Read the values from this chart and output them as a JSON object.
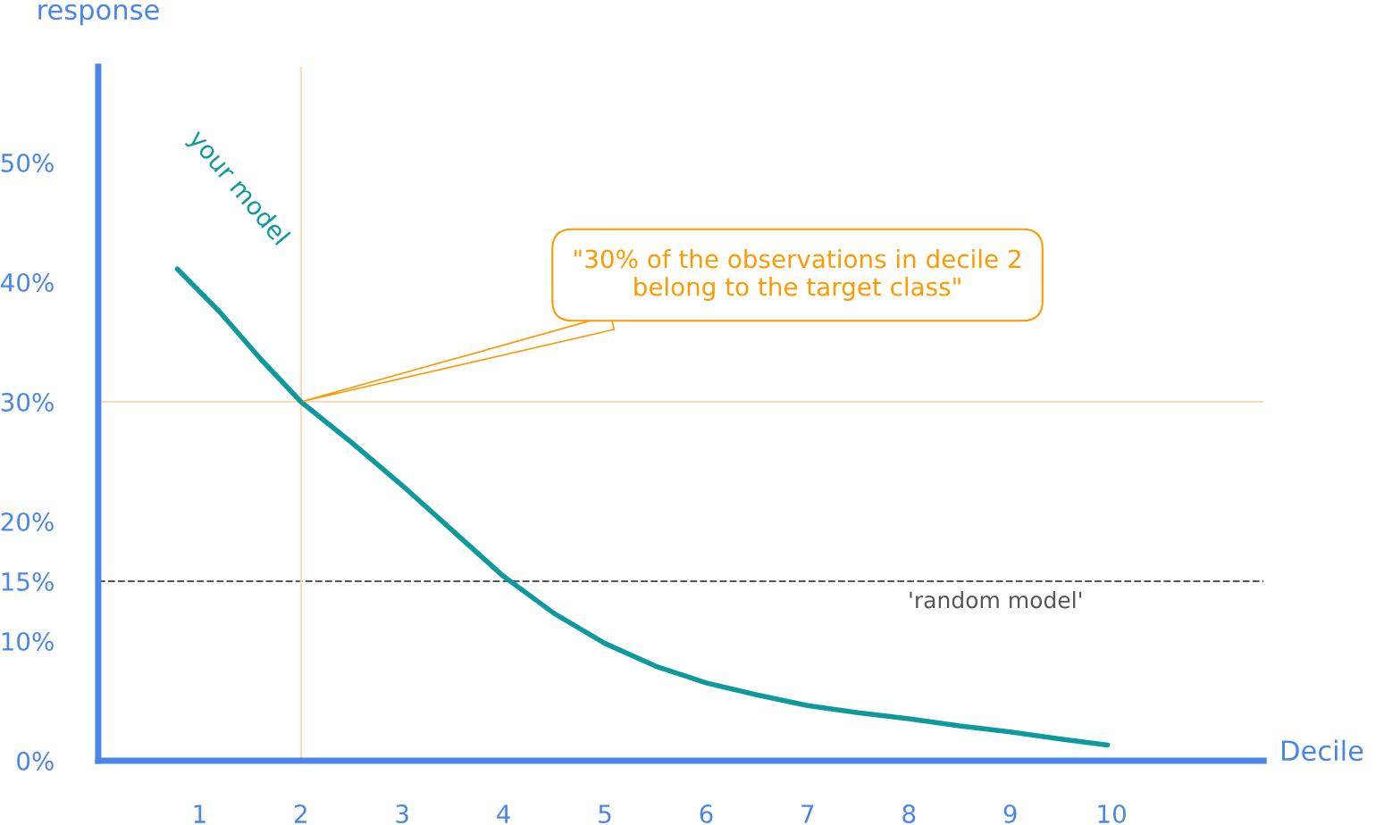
{
  "chart_data": {
    "type": "line",
    "ylabel": "response",
    "xlabel": "Decile",
    "x": [
      0.78,
      1.2,
      1.6,
      2,
      2.5,
      3,
      3.5,
      4,
      4.5,
      5,
      5.5,
      6,
      6.5,
      7,
      7.5,
      8,
      8.5,
      9,
      9.5,
      9.96
    ],
    "series": [
      {
        "name": "your model",
        "color": "#0e9a9c",
        "values": [
          41.1,
          37.5,
          33.6,
          30,
          26.6,
          23,
          19.2,
          15.4,
          12.3,
          9.8,
          7.9,
          6.5,
          5.5,
          4.6,
          4.0,
          3.5,
          2.9,
          2.4,
          1.8,
          1.3
        ]
      }
    ],
    "xlim": [
      0,
      11.5
    ],
    "xticks": [
      1,
      2,
      3,
      4,
      5,
      6,
      7,
      8,
      9,
      10
    ],
    "ylim": [
      0,
      58
    ],
    "yticks": [
      {
        "value": 0,
        "label": "0%"
      },
      {
        "value": 10,
        "label": "10%"
      },
      {
        "value": 15,
        "label": "15%"
      },
      {
        "value": 20,
        "label": "20%"
      },
      {
        "value": 30,
        "label": "30%"
      },
      {
        "value": 40,
        "label": "40%"
      },
      {
        "value": 50,
        "label": "50%"
      }
    ],
    "ref_lines": [
      {
        "axis": "y",
        "value": 15,
        "label": "'random model'",
        "color": "#555555",
        "line_style": "dashed"
      },
      {
        "axis": "x",
        "value": 2,
        "label": null,
        "color": "#ffd8b0",
        "line_style": "solid"
      },
      {
        "axis": "y",
        "value": 30,
        "label": null,
        "color": "#ffd8b0",
        "line_style": "solid"
      }
    ],
    "annotations": [
      {
        "text": "\"30% of the observations in decile 2\nbelong to the target class\"",
        "x": 2,
        "y": 30
      }
    ],
    "grid": false,
    "legend": false,
    "marker": "none",
    "line_style": "solid"
  }
}
